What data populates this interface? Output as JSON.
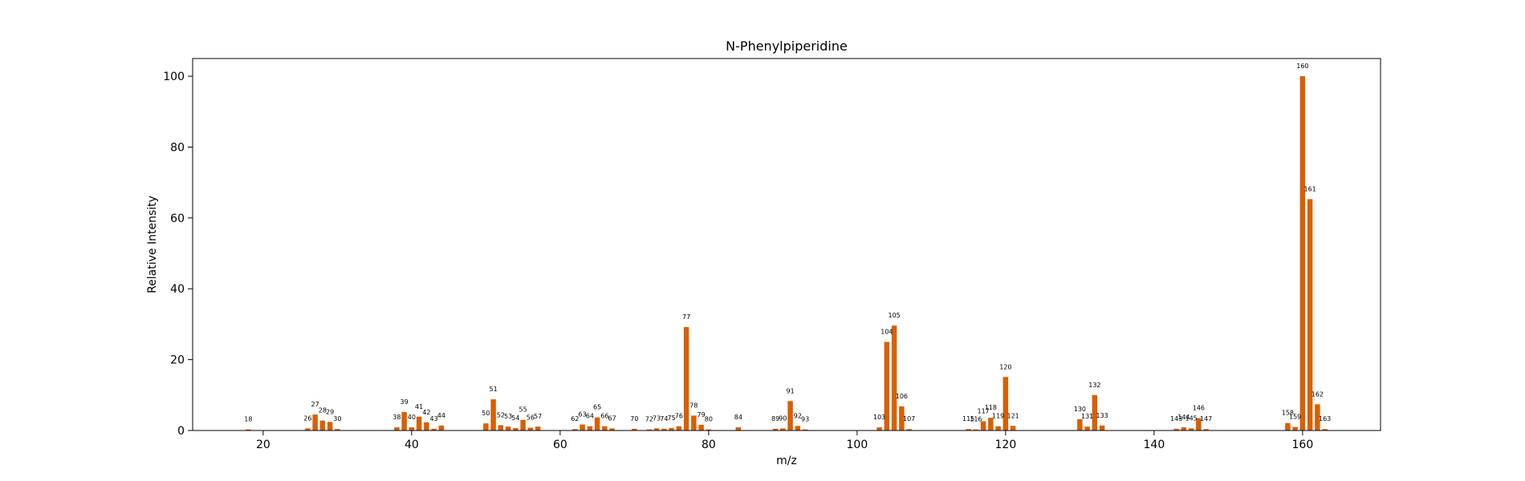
{
  "chart_data": {
    "type": "bar",
    "title": "N-Phenylpiperidine",
    "xlabel": "m/z",
    "ylabel": "Relative Intensity",
    "xlim": [
      10.5,
      170.5
    ],
    "ylim": [
      0,
      105
    ],
    "xticks": [
      20,
      40,
      60,
      80,
      100,
      120,
      140,
      160
    ],
    "yticks": [
      0,
      20,
      40,
      60,
      80,
      100
    ],
    "grid": false,
    "bar_color": "#d95f02",
    "peaks": [
      {
        "x": 18,
        "y": 0.3
      },
      {
        "x": 26,
        "y": 0.6
      },
      {
        "x": 27,
        "y": 4.5
      },
      {
        "x": 28,
        "y": 2.8
      },
      {
        "x": 29,
        "y": 2.4
      },
      {
        "x": 30,
        "y": 0.4
      },
      {
        "x": 38,
        "y": 0.9
      },
      {
        "x": 39,
        "y": 5.2
      },
      {
        "x": 40,
        "y": 0.9
      },
      {
        "x": 41,
        "y": 3.9
      },
      {
        "x": 42,
        "y": 2.3
      },
      {
        "x": 43,
        "y": 0.5
      },
      {
        "x": 44,
        "y": 1.4
      },
      {
        "x": 50,
        "y": 2.0
      },
      {
        "x": 51,
        "y": 8.8
      },
      {
        "x": 52,
        "y": 1.5
      },
      {
        "x": 53,
        "y": 1.1
      },
      {
        "x": 54,
        "y": 0.7
      },
      {
        "x": 55,
        "y": 3.0
      },
      {
        "x": 56,
        "y": 0.8
      },
      {
        "x": 57,
        "y": 1.1
      },
      {
        "x": 62,
        "y": 0.4
      },
      {
        "x": 63,
        "y": 1.7
      },
      {
        "x": 64,
        "y": 1.2
      },
      {
        "x": 65,
        "y": 3.7
      },
      {
        "x": 66,
        "y": 1.2
      },
      {
        "x": 67,
        "y": 0.6
      },
      {
        "x": 70,
        "y": 0.5
      },
      {
        "x": 72,
        "y": 0.3
      },
      {
        "x": 73,
        "y": 0.6
      },
      {
        "x": 74,
        "y": 0.5
      },
      {
        "x": 75,
        "y": 0.7
      },
      {
        "x": 76,
        "y": 1.2
      },
      {
        "x": 77,
        "y": 29.2
      },
      {
        "x": 78,
        "y": 4.2
      },
      {
        "x": 79,
        "y": 1.6
      },
      {
        "x": 80,
        "y": 0.3
      },
      {
        "x": 84,
        "y": 0.9
      },
      {
        "x": 89,
        "y": 0.5
      },
      {
        "x": 90,
        "y": 0.6
      },
      {
        "x": 91,
        "y": 8.3
      },
      {
        "x": 92,
        "y": 1.3
      },
      {
        "x": 93,
        "y": 0.3
      },
      {
        "x": 103,
        "y": 0.9
      },
      {
        "x": 104,
        "y": 25.0
      },
      {
        "x": 105,
        "y": 29.6
      },
      {
        "x": 106,
        "y": 6.8
      },
      {
        "x": 107,
        "y": 0.4
      },
      {
        "x": 115,
        "y": 0.4
      },
      {
        "x": 116,
        "y": 0.3
      },
      {
        "x": 117,
        "y": 2.6
      },
      {
        "x": 118,
        "y": 3.6
      },
      {
        "x": 119,
        "y": 1.2
      },
      {
        "x": 120,
        "y": 15.1
      },
      {
        "x": 121,
        "y": 1.3
      },
      {
        "x": 130,
        "y": 3.2
      },
      {
        "x": 131,
        "y": 1.1
      },
      {
        "x": 132,
        "y": 10.0
      },
      {
        "x": 133,
        "y": 1.4
      },
      {
        "x": 143,
        "y": 0.5
      },
      {
        "x": 144,
        "y": 0.9
      },
      {
        "x": 145,
        "y": 0.6
      },
      {
        "x": 146,
        "y": 3.5
      },
      {
        "x": 147,
        "y": 0.4
      },
      {
        "x": 158,
        "y": 2.1
      },
      {
        "x": 159,
        "y": 1.0
      },
      {
        "x": 160,
        "y": 100
      },
      {
        "x": 161,
        "y": 65.3
      },
      {
        "x": 162,
        "y": 7.4
      },
      {
        "x": 163,
        "y": 0.4
      }
    ]
  }
}
